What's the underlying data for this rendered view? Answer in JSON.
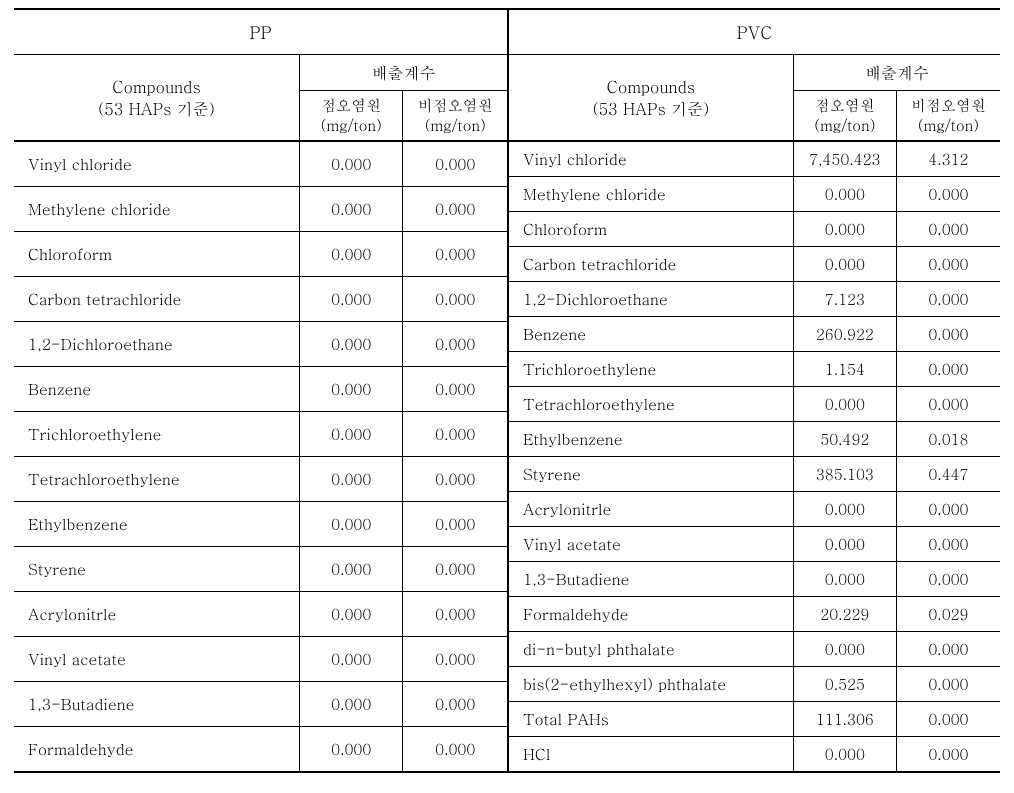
{
  "header_labels": {
    "compounds_line1": "Compounds",
    "compounds_line2": "(53 HAPs 기준)",
    "factor_title": "배출계수",
    "sub1_line1": "점오염원",
    "sub1_line2": "(mg/ton)",
    "sub2_line1": "비점오염원",
    "sub2_line2": "(mg/ton)"
  },
  "left": {
    "title": "PP",
    "rows": [
      {
        "name": "Vinyl chloride",
        "v1": "0.000",
        "v2": "0.000"
      },
      {
        "name": "Methylene chloride",
        "v1": "0.000",
        "v2": "0.000"
      },
      {
        "name": "Chloroform",
        "v1": "0.000",
        "v2": "0.000"
      },
      {
        "name": "Carbon tetrachloride",
        "v1": "0.000",
        "v2": "0.000"
      },
      {
        "name": "1,2-Dichloroethane",
        "v1": "0.000",
        "v2": "0.000"
      },
      {
        "name": "Benzene",
        "v1": "0.000",
        "v2": "0.000"
      },
      {
        "name": "Trichloroethylene",
        "v1": "0.000",
        "v2": "0.000"
      },
      {
        "name": "Tetrachloroethylene",
        "v1": "0.000",
        "v2": "0.000"
      },
      {
        "name": "Ethylbenzene",
        "v1": "0.000",
        "v2": "0.000"
      },
      {
        "name": "Styrene",
        "v1": "0.000",
        "v2": "0.000"
      },
      {
        "name": "Acrylonitrle",
        "v1": "0.000",
        "v2": "0.000"
      },
      {
        "name": "Vinyl acetate",
        "v1": "0.000",
        "v2": "0.000"
      },
      {
        "name": "1,3-Butadiene",
        "v1": "0.000",
        "v2": "0.000"
      },
      {
        "name": "Formaldehyde",
        "v1": "0.000",
        "v2": "0.000"
      }
    ]
  },
  "right": {
    "title": "PVC",
    "rows": [
      {
        "name": "Vinyl chloride",
        "v1": "7,450.423",
        "v2": "4.312"
      },
      {
        "name": "Methylene chloride",
        "v1": "0.000",
        "v2": "0.000"
      },
      {
        "name": "Chloroform",
        "v1": "0.000",
        "v2": "0.000"
      },
      {
        "name": "Carbon tetrachloride",
        "v1": "0.000",
        "v2": "0.000"
      },
      {
        "name": "1,2-Dichloroethane",
        "v1": "7.123",
        "v2": "0.000"
      },
      {
        "name": "Benzene",
        "v1": "260.922",
        "v2": "0.000"
      },
      {
        "name": "Trichloroethylene",
        "v1": "1.154",
        "v2": "0.000"
      },
      {
        "name": "Tetrachloroethylene",
        "v1": "0.000",
        "v2": "0.000"
      },
      {
        "name": "Ethylbenzene",
        "v1": "50.492",
        "v2": "0.018"
      },
      {
        "name": "Styrene",
        "v1": "385.103",
        "v2": "0.447"
      },
      {
        "name": "Acrylonitrle",
        "v1": "0.000",
        "v2": "0.000"
      },
      {
        "name": "Vinyl acetate",
        "v1": "0.000",
        "v2": "0.000"
      },
      {
        "name": "1,3-Butadiene",
        "v1": "0.000",
        "v2": "0.000"
      },
      {
        "name": "Formaldehyde",
        "v1": "20.229",
        "v2": "0.029"
      },
      {
        "name": "di-n-butyl phthalate",
        "v1": "0.000",
        "v2": "0.000"
      },
      {
        "name": "bis(2-ethylhexyl) phthalate",
        "v1": "0.525",
        "v2": "0.000"
      },
      {
        "name": "Total PAHs",
        "v1": "111.306",
        "v2": "0.000"
      },
      {
        "name": "HCl",
        "v1": "0.000",
        "v2": "0.000"
      }
    ]
  },
  "colors": {
    "text": "#000000",
    "bg": "#ffffff",
    "border": "#000000"
  }
}
